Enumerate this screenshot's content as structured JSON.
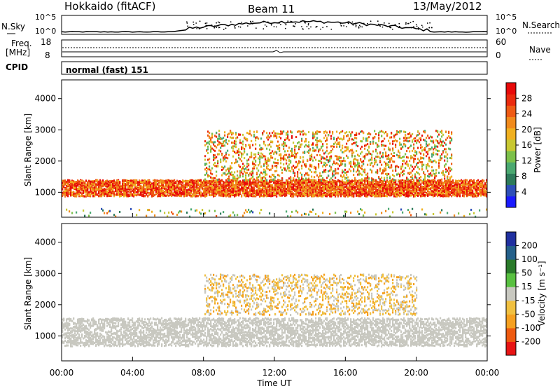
{
  "header": {
    "station": "Hokkaido (fitACF)",
    "beam": "Beam 11",
    "date": "13/May/2012"
  },
  "strips": {
    "nsky_label": "N.Sky",
    "nsky_ticks": [
      "10^5",
      "10^0"
    ],
    "nsearch_label": "N.Search",
    "nsearch_ticks": [
      "10^5",
      "10^0"
    ],
    "freq_label": "Freq.",
    "freq_unit": "[MHz]",
    "freq_ticks": [
      "18",
      "8"
    ],
    "nave_label": "Nave",
    "nave_ticks": [
      "60",
      "0"
    ],
    "cpid_label": "CPID",
    "cpid_value": "normal (fast) 151"
  },
  "chart_data": [
    {
      "type": "heatmap",
      "title": "",
      "xlabel": "",
      "ylabel": "Slant Range [km]",
      "x_ticks": [
        "00:00",
        "04:00",
        "08:00",
        "12:00",
        "16:00",
        "20:00",
        "00:00"
      ],
      "y_ticks": [
        1000,
        2000,
        3000,
        4000
      ],
      "ylim": [
        200,
        4600
      ],
      "colorbar": {
        "label": "Power [dB]",
        "ticks": [
          "28",
          "24",
          "20",
          "16",
          "12",
          "8",
          "4"
        ],
        "range": [
          0,
          32
        ],
        "colors": [
          "#1a1aff",
          "#2e4fb8",
          "#2d7a5a",
          "#4aa870",
          "#7cc04a",
          "#c8c832",
          "#f0b020",
          "#f08a1c",
          "#ee5a14",
          "#ea2a0e",
          "#e80a0a"
        ]
      },
      "features": [
        {
          "name": "ground-scatter band",
          "x_hours": [
            0,
            24
          ],
          "range_km": [
            900,
            1400
          ],
          "power_db": 28
        },
        {
          "name": "traveling ionospheric disturbance bands",
          "x_hours": [
            8,
            22
          ],
          "range_km": [
            1400,
            3000
          ],
          "power_db": 22
        }
      ]
    },
    {
      "type": "heatmap",
      "title": "",
      "xlabel": "Time UT",
      "ylabel": "Slant Range [km]",
      "x_ticks": [
        "00:00",
        "04:00",
        "08:00",
        "12:00",
        "16:00",
        "20:00",
        "00:00"
      ],
      "y_ticks": [
        1000,
        2000,
        3000,
        4000
      ],
      "ylim": [
        200,
        4600
      ],
      "colorbar": {
        "label": "Velocity [m s⁻¹]",
        "ticks": [
          "200",
          "100",
          "50",
          "15",
          "-15",
          "-50",
          "-100",
          "-200"
        ],
        "range": [
          -250,
          250
        ],
        "colors": [
          "#e81414",
          "#ee5a10",
          "#f5a020",
          "#f0c040",
          "#c8c8c0",
          "#58c040",
          "#2a7a2a",
          "#24608a",
          "#2030a0"
        ]
      },
      "features": [
        {
          "name": "ground scatter (grey)",
          "x_hours": [
            0,
            24
          ],
          "range_km": [
            700,
            1600
          ],
          "velocity": 0
        },
        {
          "name": "negative velocity bands",
          "x_hours": [
            8,
            19
          ],
          "range_km": [
            1700,
            3000
          ],
          "velocity": -60
        }
      ]
    }
  ]
}
